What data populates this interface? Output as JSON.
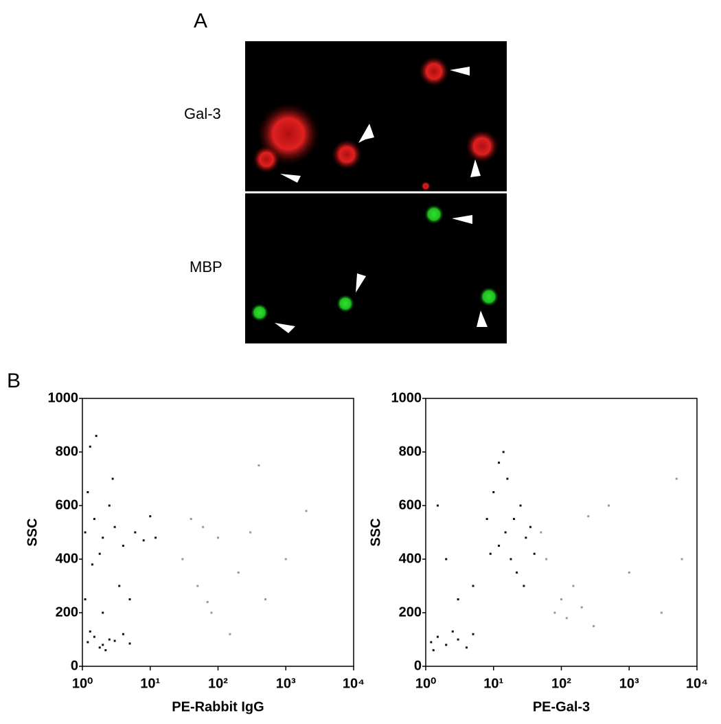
{
  "panel_a": {
    "label": "A",
    "row_labels": [
      "Gal-3",
      "MBP"
    ]
  },
  "panel_b": {
    "label": "B"
  },
  "chart_data": [
    {
      "type": "scatter",
      "y_label": "SSC",
      "x_label": "PE-Rabbit IgG",
      "xscale": "log",
      "xlim": [
        1,
        10000
      ],
      "ylim": [
        0,
        1000
      ],
      "xticks": [
        {
          "value": 1,
          "label": "10⁰"
        },
        {
          "value": 10,
          "label": "10¹"
        },
        {
          "value": 100,
          "label": "10²"
        },
        {
          "value": 1000,
          "label": "10³"
        },
        {
          "value": 10000,
          "label": "10⁴"
        }
      ],
      "yticks": [
        0,
        200,
        400,
        600,
        800,
        1000
      ],
      "series": [
        {
          "color": "#111111",
          "x": [
            1.2,
            1.5,
            2,
            2.5,
            3,
            1.8,
            4,
            1.3,
            2.2,
            5,
            1.1,
            1.5,
            2,
            2.5,
            3,
            4,
            1.8,
            1.2,
            6,
            8,
            1.4,
            2.8,
            1.3,
            1.6,
            3.5,
            5,
            10,
            12,
            1.1,
            2
          ],
          "values": [
            90,
            110,
            80,
            100,
            95,
            70,
            120,
            130,
            60,
            85,
            500,
            550,
            480,
            600,
            520,
            450,
            420,
            650,
            500,
            470,
            380,
            700,
            820,
            860,
            300,
            250,
            560,
            480,
            250,
            200
          ]
        },
        {
          "color": "#999999",
          "x": [
            30,
            50,
            60,
            80,
            100,
            200,
            500,
            400,
            150,
            40,
            70,
            300,
            1000,
            2000
          ],
          "values": [
            400,
            300,
            520,
            200,
            480,
            350,
            250,
            750,
            120,
            550,
            240,
            500,
            400,
            580
          ]
        }
      ]
    },
    {
      "type": "scatter",
      "y_label": "SSC",
      "x_label": "PE-Gal-3",
      "xscale": "log",
      "xlim": [
        1,
        10000
      ],
      "ylim": [
        0,
        1000
      ],
      "xticks": [
        {
          "value": 1,
          "label": "10⁰"
        },
        {
          "value": 10,
          "label": "10¹"
        },
        {
          "value": 100,
          "label": "10²"
        },
        {
          "value": 1000,
          "label": "10³"
        },
        {
          "value": 10000,
          "label": "10⁴"
        }
      ],
      "yticks": [
        0,
        200,
        400,
        600,
        800,
        1000
      ],
      "series": [
        {
          "color": "#111111",
          "x": [
            1.2,
            1.5,
            2,
            3,
            4,
            5,
            1.3,
            2.5,
            15,
            20,
            12,
            25,
            18,
            30,
            10,
            22,
            16,
            35,
            8,
            40,
            14,
            5,
            3,
            1.5,
            2,
            28,
            12,
            9
          ],
          "values": [
            90,
            110,
            80,
            100,
            70,
            120,
            60,
            130,
            500,
            550,
            450,
            600,
            400,
            480,
            650,
            350,
            700,
            520,
            550,
            420,
            800,
            300,
            250,
            600,
            400,
            300,
            760,
            420
          ]
        },
        {
          "color": "#999999",
          "x": [
            50,
            80,
            120,
            200,
            150,
            300,
            60,
            100,
            250,
            500,
            1000,
            3000,
            5000,
            6000
          ],
          "values": [
            500,
            200,
            180,
            220,
            300,
            150,
            400,
            250,
            560,
            600,
            350,
            200,
            700,
            400
          ]
        }
      ]
    }
  ]
}
